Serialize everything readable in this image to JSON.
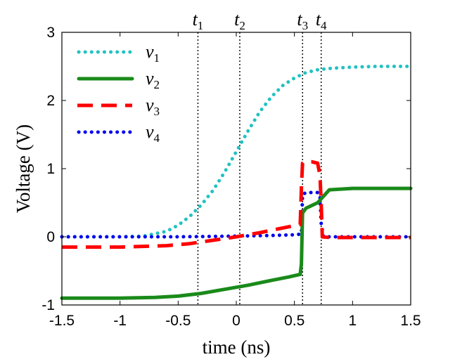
{
  "chart_data": {
    "type": "line",
    "xlabel": "time (ns)",
    "ylabel": "Voltage (V)",
    "xlim": [
      -1.5,
      1.5
    ],
    "ylim": [
      -1,
      3
    ],
    "xticks": [
      -1.5,
      -1,
      -0.5,
      0,
      0.5,
      1,
      1.5
    ],
    "xtick_labels": [
      "-1.5",
      "-1",
      "-0.5",
      "0",
      "0.5",
      "1",
      "1.5"
    ],
    "yticks": [
      -1,
      0,
      1,
      2,
      3
    ],
    "ytick_labels": [
      "-1",
      "0",
      "1",
      "2",
      "3"
    ],
    "grid": false,
    "legend_position": "top-left",
    "markers": [
      {
        "label": "t",
        "sub": "1",
        "x": -0.33
      },
      {
        "label": "t",
        "sub": "2",
        "x": 0.03
      },
      {
        "label": "t",
        "sub": "3",
        "x": 0.57
      },
      {
        "label": "t",
        "sub": "4",
        "x": 0.73
      }
    ],
    "series": [
      {
        "name": "v",
        "sub": "1",
        "color": "#22c2c2",
        "style": "dotted",
        "x": [
          -1.5,
          -1.0,
          -0.8,
          -0.6,
          -0.5,
          -0.4,
          -0.3,
          -0.2,
          -0.1,
          0.0,
          0.1,
          0.2,
          0.3,
          0.4,
          0.5,
          0.6,
          0.7,
          0.8,
          0.9,
          1.0,
          1.2,
          1.5
        ],
        "y": [
          0.0,
          0.0,
          0.01,
          0.08,
          0.17,
          0.3,
          0.47,
          0.68,
          0.95,
          1.25,
          1.55,
          1.83,
          2.05,
          2.22,
          2.33,
          2.41,
          2.45,
          2.47,
          2.48,
          2.49,
          2.5,
          2.5
        ]
      },
      {
        "name": "v",
        "sub": "2",
        "color": "#1a8a1a",
        "style": "solid",
        "x": [
          -1.5,
          -1.0,
          -0.7,
          -0.5,
          -0.3,
          -0.1,
          0.1,
          0.3,
          0.45,
          0.55,
          0.56,
          0.57,
          0.6,
          0.7,
          0.8,
          1.0,
          1.5
        ],
        "y": [
          -0.9,
          -0.9,
          -0.89,
          -0.87,
          -0.83,
          -0.77,
          -0.71,
          -0.64,
          -0.59,
          -0.55,
          -0.4,
          0.35,
          0.42,
          0.5,
          0.69,
          0.71,
          0.71
        ]
      },
      {
        "name": "v",
        "sub": "3",
        "color": "#ff0000",
        "style": "dashed",
        "x": [
          -1.5,
          -1.0,
          -0.6,
          -0.4,
          -0.2,
          0.0,
          0.2,
          0.4,
          0.55,
          0.56,
          0.57,
          0.58,
          0.6,
          0.65,
          0.7,
          0.72,
          0.73,
          0.74,
          0.8,
          1.0,
          1.5
        ],
        "y": [
          -0.15,
          -0.15,
          -0.13,
          -0.1,
          -0.05,
          0.0,
          0.06,
          0.13,
          0.18,
          0.72,
          1.08,
          1.1,
          1.1,
          1.1,
          1.08,
          0.9,
          0.5,
          0.0,
          -0.01,
          -0.01,
          -0.01
        ]
      },
      {
        "name": "v",
        "sub": "4",
        "color": "#0000ee",
        "style": "dotted",
        "x": [
          -1.5,
          -1.0,
          -0.5,
          0.0,
          0.3,
          0.5,
          0.56,
          0.57,
          0.6,
          0.7,
          0.72,
          0.73,
          0.75,
          1.0,
          1.5
        ],
        "y": [
          0.0,
          0.0,
          0.0,
          0.01,
          0.02,
          0.03,
          0.04,
          0.62,
          0.65,
          0.65,
          0.6,
          0.2,
          0.0,
          0.0,
          0.0
        ]
      }
    ]
  }
}
